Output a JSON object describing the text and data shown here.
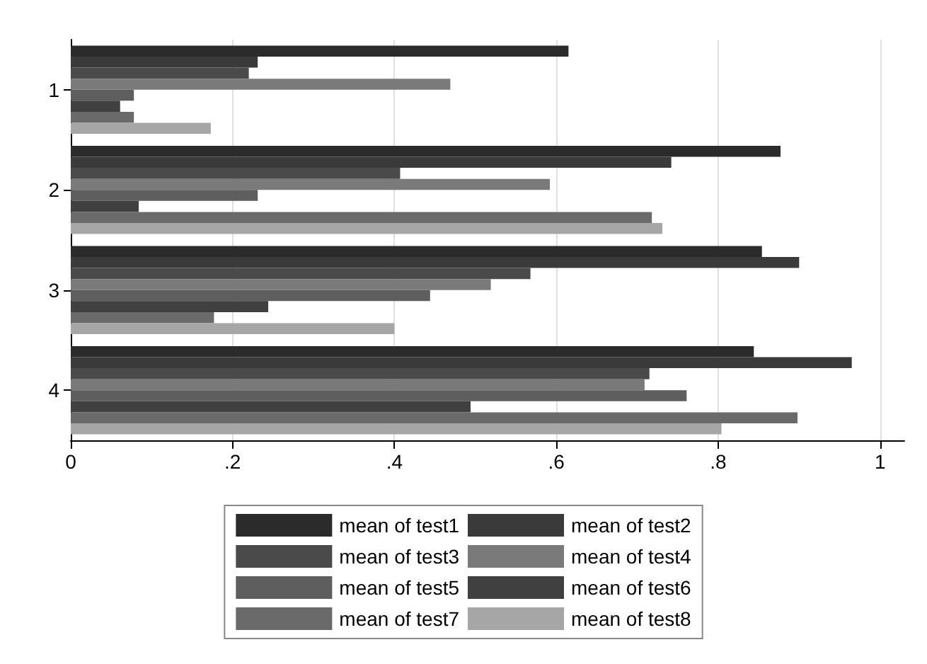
{
  "chart_data": {
    "type": "bar",
    "orientation": "horizontal",
    "categories": [
      "1",
      "2",
      "3",
      "4"
    ],
    "series": [
      {
        "name": "mean of test1",
        "color": "#2b2b2b",
        "values": [
          0.615,
          0.877,
          0.854,
          0.844
        ]
      },
      {
        "name": "mean of test2",
        "color": "#3a3a3a",
        "values": [
          0.231,
          0.742,
          0.9,
          0.965
        ]
      },
      {
        "name": "mean of test3",
        "color": "#4a4a4a",
        "values": [
          0.22,
          0.407,
          0.568,
          0.715
        ]
      },
      {
        "name": "mean of test4",
        "color": "#7a7a7a",
        "values": [
          0.469,
          0.592,
          0.519,
          0.709
        ]
      },
      {
        "name": "mean of test5",
        "color": "#5e5e5e",
        "values": [
          0.078,
          0.231,
          0.444,
          0.761
        ]
      },
      {
        "name": "mean of test6",
        "color": "#404040",
        "values": [
          0.061,
          0.084,
          0.244,
          0.494
        ]
      },
      {
        "name": "mean of test7",
        "color": "#6a6a6a",
        "values": [
          0.078,
          0.718,
          0.177,
          0.898
        ]
      },
      {
        "name": "mean of test8",
        "color": "#a6a6a6",
        "values": [
          0.173,
          0.731,
          0.4,
          0.804
        ]
      }
    ],
    "xlim": [
      0,
      1.03
    ],
    "xticks": [
      0,
      {
        "value": 0.2,
        "label": ".2"
      },
      {
        "value": 0.4,
        "label": ".4"
      },
      {
        "value": 0.6,
        "label": ".6"
      },
      {
        "value": 0.8,
        "label": ".8"
      },
      1
    ],
    "grid": "x",
    "legend": "bottom"
  }
}
